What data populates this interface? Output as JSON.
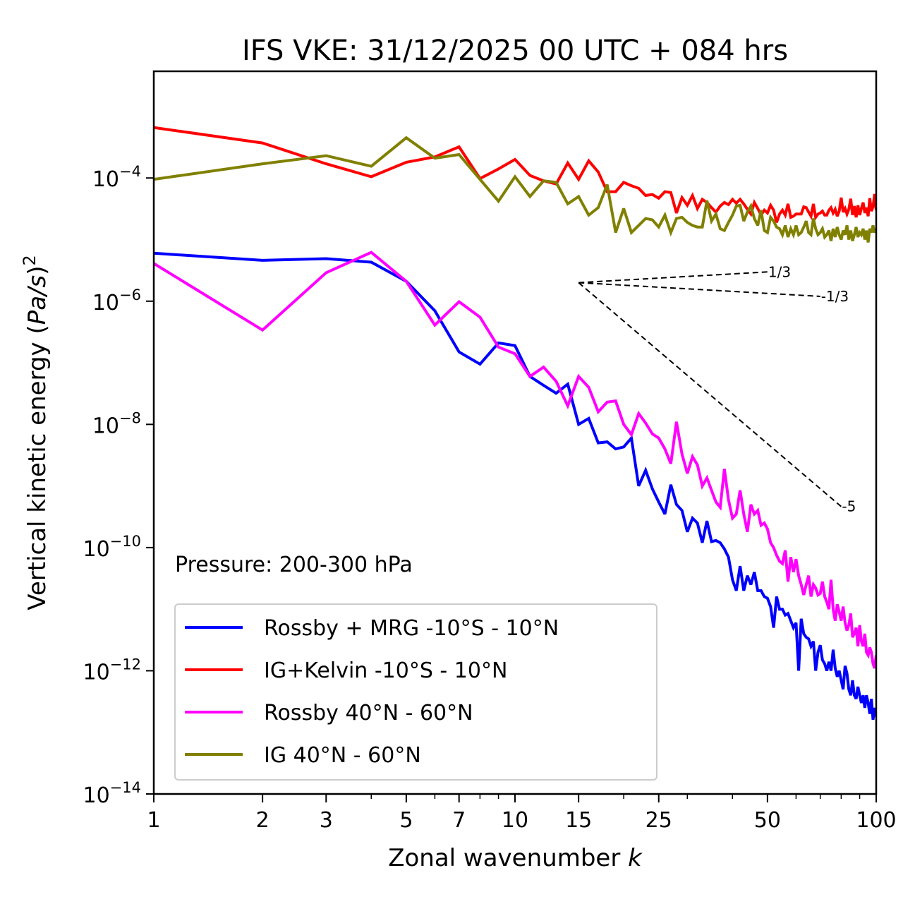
{
  "chart_data": {
    "type": "line",
    "title": "IFS VKE: 31/12/2025 00 UTC + 084 hrs",
    "xlabel": "Zonal wavenumber k",
    "xlabel_main": "Zonal wavenumber ",
    "xlabel_italic": "k",
    "ylabel": "Vertical kinetic energy (Pa/s)^2",
    "ylabel_main": "Vertical kinetic energy (",
    "ylabel_italic": "Pa/s",
    "ylabel_close": ")",
    "ylabel_sup": "2",
    "xscale": "log",
    "yscale": "log",
    "xlim": [
      1,
      100
    ],
    "ylim": [
      1e-14,
      0.0054
    ],
    "grid": false,
    "legend_position": "lower-left",
    "x_ticks": [
      {
        "value": 1,
        "label": "1"
      },
      {
        "value": 2,
        "label": "2"
      },
      {
        "value": 3,
        "label": "3"
      },
      {
        "value": 5,
        "label": "5"
      },
      {
        "value": 7,
        "label": "7"
      },
      {
        "value": 10,
        "label": "10"
      },
      {
        "value": 15,
        "label": "15"
      },
      {
        "value": 25,
        "label": "25"
      },
      {
        "value": 50,
        "label": "50"
      },
      {
        "value": 100,
        "label": "100"
      }
    ],
    "y_ticks": [
      {
        "value": 0.0001,
        "base": "10",
        "exp": "−4"
      },
      {
        "value": 1e-06,
        "base": "10",
        "exp": "−6"
      },
      {
        "value": 1e-08,
        "base": "10",
        "exp": "−8"
      },
      {
        "value": 1e-10,
        "base": "10",
        "exp": "−10"
      },
      {
        "value": 1e-12,
        "base": "10",
        "exp": "−12"
      },
      {
        "value": 1e-14,
        "base": "10",
        "exp": "−14"
      }
    ],
    "annotation": "Pressure: 200-300 hPa",
    "reference_slopes": [
      {
        "label": "1/3",
        "slope": 0.3333,
        "x_start": 15,
        "y_start": 2e-06,
        "x_end": 50
      },
      {
        "label": "-1/3",
        "slope": -0.3333,
        "x_start": 15,
        "y_start": 2e-06,
        "x_end": 70
      },
      {
        "label": "-5",
        "slope": -5,
        "x_start": 15,
        "y_start": 2e-06,
        "x_end": 80
      }
    ],
    "series": [
      {
        "name": "Rossby + MRG -10°S - 10°N",
        "color": "#0000ff",
        "k_start": 1,
        "values": [
          6e-06,
          4.6e-06,
          4.9e-06,
          4.3e-06,
          2.1e-06,
          7e-07,
          1.5e-07,
          9.5e-08,
          2.1e-07,
          1.9e-07,
          6e-08,
          4.3e-08,
          3.2e-08,
          4.5e-08,
          1e-08,
          1.25e-08,
          5e-09,
          5.2e-09,
          4e-09,
          4.3e-09,
          6e-09,
          1e-09,
          1.8e-09,
          9e-10,
          5.5e-10,
          3.5e-10,
          1.05e-09,
          5e-10,
          4e-10,
          1.8e-10,
          3e-10,
          2.5e-10,
          1.2e-10,
          2.7e-10,
          1.25e-10,
          1.3e-10,
          1.2e-10,
          9.5e-11,
          7e-11,
          3e-11,
          2e-11,
          5e-11,
          2e-11,
          3.5e-11,
          2.5e-11,
          4e-11,
          2e-11,
          2e-11,
          1.6e-11,
          1.5e-11,
          1.1e-11,
          5e-12,
          1.6e-11,
          1e-11,
          1e-11,
          8e-12,
          8.5e-12,
          6.5e-12,
          5e-12,
          6e-12,
          1e-12,
          7e-12,
          4e-12,
          3.5e-12,
          3.3e-12,
          2.5e-12,
          3e-12,
          1e-12,
          2e-12,
          2.6e-12,
          1.5e-12,
          1.3e-12,
          1e-12,
          1.4e-12,
          1e-12,
          2.2e-12,
          1.1e-12,
          8e-13,
          1e-12,
          7e-13,
          5e-13,
          1.2e-12,
          9e-13,
          5e-13,
          4e-13,
          7e-13,
          4e-13,
          3.5e-13,
          5.5e-13,
          4e-13,
          3e-13,
          4e-13,
          2.5e-13,
          4e-13,
          3e-13,
          2e-13,
          3.5e-13,
          1.6e-13,
          2.5e-13,
          1.8e-13
        ]
      },
      {
        "name": "IG+Kelvin -10°S - 10°N",
        "color": "#ff0000",
        "k_start": 1,
        "values": [
          0.00066,
          0.00037,
          0.00017,
          0.000105,
          0.00018,
          0.00022,
          0.00032,
          9.8e-05,
          0.00014,
          0.0002,
          0.00011,
          9e-05,
          8e-05,
          0.000175,
          9.5e-05,
          0.00019,
          0.000125,
          6e-05,
          6e-05,
          8.5e-05,
          7.5e-05,
          6.8e-05,
          5.2e-05,
          5.4e-05,
          4.7e-05,
          6e-05,
          5.8e-05,
          2.7e-05,
          4.8e-05,
          3.6e-05,
          5.2e-05,
          3.2e-05,
          4.5e-05,
          4e-05,
          3.3e-05,
          2.8e-05,
          3.5e-05,
          4e-05,
          3.7e-05,
          4.5e-05,
          3.9e-05,
          4.5e-05,
          3.8e-05,
          3.1e-05,
          2.6e-05,
          4e-05,
          3.2e-05,
          2.5e-05,
          3e-05,
          2.7e-05,
          3.6e-05,
          3e-05,
          1.9e-05,
          2.6e-05,
          3e-05,
          2.5e-05,
          3.8e-05,
          2.3e-05,
          2.4e-05,
          2.6e-05,
          2.6e-05,
          2.6e-05,
          3.4e-05,
          3.3e-05,
          2.8e-05,
          2.4e-05,
          3.8e-05,
          2.3e-05,
          2.6e-05,
          2.7e-05,
          2.9e-05,
          2.5e-05,
          2.5e-05,
          3e-05,
          3.3e-05,
          2.7e-05,
          3.1e-05,
          2.4e-05,
          2.9e-05,
          4.8e-05,
          2.8e-05,
          3.2e-05,
          2.6e-05,
          3.1e-05,
          4.6e-05,
          2.5e-05,
          3.5e-05,
          2.3e-05,
          3.6e-05,
          2.5e-05,
          3.2e-05,
          4e-05,
          2.7e-05,
          3.3e-05,
          2.4e-05,
          4.7e-05,
          2.9e-05,
          3.4e-05,
          5.5e-05,
          3e-05
        ]
      },
      {
        "name": "Rossby 40°N - 60°N",
        "color": "#ff00ff",
        "k_start": 1,
        "values": [
          4.1e-06,
          3.4e-07,
          2.9e-06,
          6.2e-06,
          2.1e-06,
          4.1e-07,
          9.8e-07,
          5.5e-07,
          1.8e-07,
          1.4e-07,
          6e-08,
          8.5e-08,
          5e-08,
          2e-08,
          6e-08,
          4e-08,
          1.6e-08,
          2.3e-08,
          2.4e-08,
          1e-08,
          6.8e-09,
          1.5e-08,
          1.05e-08,
          7e-09,
          6e-09,
          4e-09,
          2.3e-09,
          1.1e-08,
          3.3e-09,
          1.6e-09,
          3e-09,
          2.2e-09,
          1e-09,
          1.35e-09,
          8.5e-10,
          5.5e-10,
          4.5e-10,
          1.9e-09,
          6e-10,
          3e-10,
          3.5e-10,
          8.5e-10,
          3.5e-10,
          1.8e-10,
          5e-10,
          3.5e-10,
          4e-10,
          2.3e-10,
          2.5e-10,
          2e-10,
          1.2e-10,
          1e-10,
          7.5e-11,
          6e-11,
          5.5e-11,
          9e-11,
          2.8e-11,
          7e-11,
          4e-11,
          6.5e-11,
          3.5e-11,
          2.5e-11,
          1.7e-11,
          2.5e-11,
          3.5e-11,
          1.6e-11,
          2.5e-11,
          2.2e-11,
          1.7e-11,
          1.8e-11,
          2.8e-11,
          1.6e-11,
          1.3e-11,
          1e-11,
          3e-11,
          1e-11,
          6.5e-12,
          1.2e-11,
          9e-12,
          6.5e-12,
          1.1e-11,
          6e-12,
          4.5e-12,
          5.5e-12,
          8.5e-12,
          3.5e-12,
          4e-12,
          5e-12,
          2.5e-12,
          5.5e-12,
          3e-12,
          2.5e-12,
          4e-12,
          2e-12,
          1.8e-12,
          2.4e-12,
          2e-12,
          1.3e-12,
          1.1e-12,
          1.8e-12
        ]
      },
      {
        "name": "IG 40°N - 60°N",
        "color": "#808000",
        "k_start": 1,
        "values": [
          9.5e-05,
          0.00017,
          0.00023,
          0.000155,
          0.00045,
          0.00021,
          0.00024,
          9.5e-05,
          4.2e-05,
          0.000105,
          5e-05,
          9e-05,
          8.5e-05,
          3.8e-05,
          5e-05,
          2.5e-05,
          3.3e-05,
          7.8e-05,
          1.3e-05,
          3.2e-05,
          1.3e-05,
          1.7e-05,
          2.2e-05,
          2.1e-05,
          1.6e-05,
          2.5e-05,
          1.3e-05,
          2.2e-05,
          2.3e-05,
          1.9e-05,
          1.7e-05,
          1.6e-05,
          1.6e-05,
          4.3e-05,
          2e-05,
          2.6e-05,
          1.5e-05,
          1.4e-05,
          1.9e-05,
          2.5e-05,
          3.5e-05,
          3.6e-05,
          2e-05,
          2.8e-05,
          3.5e-05,
          2.2e-05,
          1.7e-05,
          3e-05,
          1.4e-05,
          1.3e-05,
          2.3e-05,
          2e-05,
          1.6e-05,
          1.5e-05,
          1.2e-05,
          1.7e-05,
          1.1e-05,
          1.5e-05,
          1.2e-05,
          1.7e-05,
          1.2e-05,
          1.3e-05,
          1.6e-05,
          2e-05,
          1.3e-05,
          1.2e-05,
          2.2e-05,
          1.5e-05,
          1.2e-05,
          1.3e-05,
          1.5e-05,
          1.1e-05,
          1.2e-05,
          1.4e-05,
          9.5e-06,
          1.5e-05,
          1.1e-05,
          1.6e-05,
          1.2e-05,
          1e-05,
          1.4e-05,
          1.2e-05,
          1.7e-05,
          1e-05,
          1.4e-05,
          9.5e-06,
          1.2e-05,
          1.6e-05,
          1.1e-05,
          1.3e-05,
          1.2e-05,
          1.5e-05,
          1e-05,
          1.4e-05,
          9e-06,
          1.5e-05,
          1.3e-05,
          1.7e-05,
          1.3e-05,
          1.5e-05
        ]
      }
    ]
  }
}
